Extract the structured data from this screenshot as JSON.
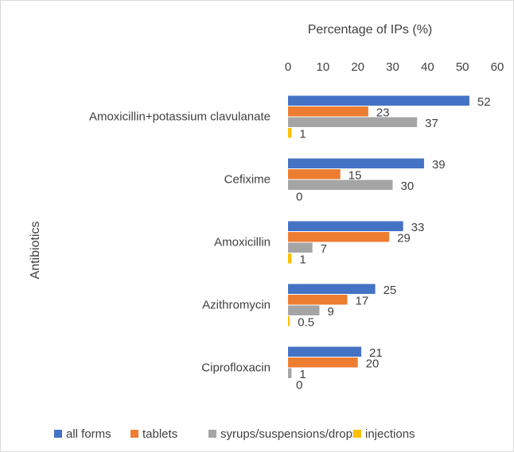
{
  "chart_data": {
    "type": "bar",
    "orientation": "horizontal",
    "x_axis_label": "Percentage of IPs (%)",
    "y_axis_label": "Antibiotics",
    "categories": [
      "Amoxicillin+potassium clavulanate",
      "Cefixime",
      "Amoxicillin",
      "Azithromycin",
      "Ciprofloxacin"
    ],
    "series": [
      {
        "name": "all forms",
        "color": "#4472c4",
        "values": [
          52,
          39,
          33,
          25,
          21
        ]
      },
      {
        "name": "tablets",
        "color": "#ed7d31",
        "values": [
          23,
          15,
          29,
          17,
          20
        ]
      },
      {
        "name": "syrups/suspensions/drops",
        "color": "#a5a5a5",
        "values": [
          37,
          30,
          7,
          9,
          1
        ]
      },
      {
        "name": "injections",
        "color": "#ffc000",
        "values": [
          1,
          0,
          1,
          0.5,
          0
        ]
      }
    ],
    "xlim": [
      0,
      60
    ],
    "xticks": [
      0,
      10,
      20,
      30,
      40,
      50,
      60
    ],
    "grid": false,
    "legend": "bottom"
  }
}
